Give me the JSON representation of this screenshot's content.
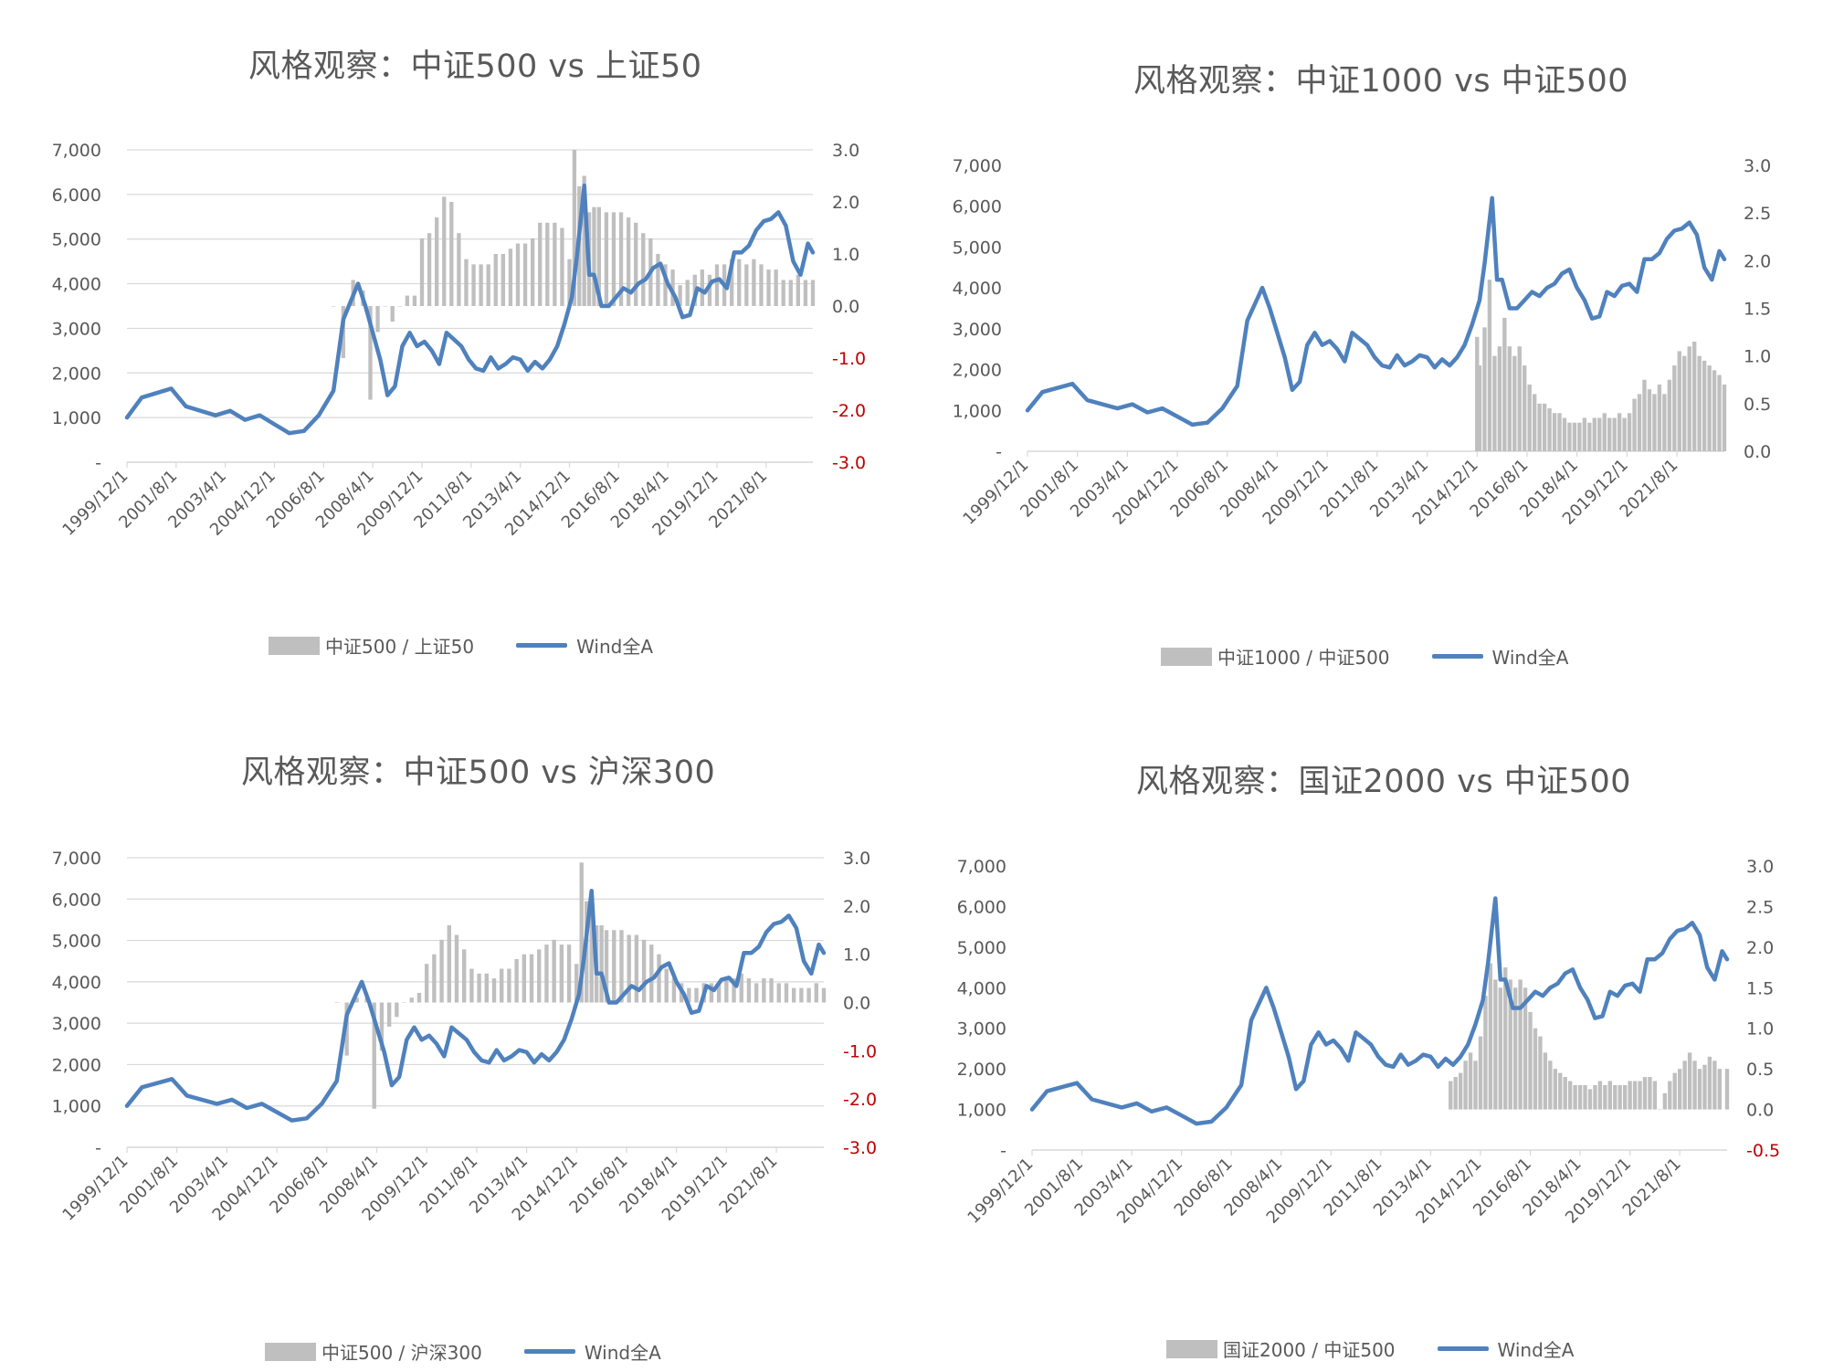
{
  "colors": {
    "bar": "#bfbfbf",
    "line": "#4f81bd",
    "grid": "#d9d9d9",
    "negative_tick": "#c00000",
    "text": "#595959"
  },
  "x_tick_labels": [
    "1999/12/1",
    "2001/8/1",
    "2003/4/1",
    "2004/12/1",
    "2006/8/1",
    "2008/4/1",
    "2009/12/1",
    "2011/8/1",
    "2013/4/1",
    "2014/12/1",
    "2016/8/1",
    "2018/4/1",
    "2019/12/1",
    "2021/8/1"
  ],
  "wind_all_a": {
    "name": "Wind全A",
    "x": [
      "1999/12",
      "2000/6",
      "2000/12",
      "2001/6",
      "2001/12",
      "2002/6",
      "2002/12",
      "2003/6",
      "2003/12",
      "2004/6",
      "2004/12",
      "2005/6",
      "2005/12",
      "2006/6",
      "2006/12",
      "2007/4",
      "2007/7",
      "2007/10",
      "2008/1",
      "2008/4",
      "2008/7",
      "2008/10",
      "2009/1",
      "2009/4",
      "2009/7",
      "2009/10",
      "2010/1",
      "2010/4",
      "2010/7",
      "2010/10",
      "2011/1",
      "2011/4",
      "2011/7",
      "2011/10",
      "2012/1",
      "2012/4",
      "2012/7",
      "2012/10",
      "2013/1",
      "2013/4",
      "2013/7",
      "2013/10",
      "2014/1",
      "2014/4",
      "2014/7",
      "2014/10",
      "2015/1",
      "2015/3",
      "2015/6",
      "2015/8",
      "2015/10",
      "2016/1",
      "2016/4",
      "2016/7",
      "2016/10",
      "2017/1",
      "2017/4",
      "2017/7",
      "2017/10",
      "2018/1",
      "2018/4",
      "2018/7",
      "2018/10",
      "2019/1",
      "2019/4",
      "2019/7",
      "2019/10",
      "2020/1",
      "2020/4",
      "2020/7",
      "2020/10",
      "2021/1",
      "2021/4",
      "2021/7",
      "2021/10",
      "2022/1",
      "2022/4",
      "2022/7",
      "2022/10",
      "2023/1",
      "2023/3"
    ],
    "values": [
      1000,
      1450,
      1550,
      1650,
      1250,
      1150,
      1050,
      1150,
      950,
      1050,
      850,
      650,
      700,
      1050,
      1600,
      3200,
      3600,
      4000,
      3500,
      2900,
      2300,
      1500,
      1700,
      2600,
      2900,
      2600,
      2700,
      2500,
      2200,
      2900,
      2750,
      2600,
      2300,
      2100,
      2050,
      2350,
      2100,
      2200,
      2350,
      2300,
      2050,
      2250,
      2100,
      2300,
      2600,
      3100,
      3700,
      4600,
      6200,
      4200,
      4200,
      3500,
      3500,
      3700,
      3900,
      3800,
      4000,
      4100,
      4350,
      4450,
      4000,
      3700,
      3250,
      3300,
      3900,
      3800,
      4050,
      4100,
      3900,
      4700,
      4700,
      4850,
      5200,
      5400,
      5450,
      5600,
      5300,
      4500,
      4200,
      4900,
      4700
    ]
  },
  "charts": [
    {
      "title": "风格观察：中证500 vs 上证50",
      "legend_bar": "中证500 / 上证50",
      "legend_line": "Wind全A",
      "left_ticks": [
        "7,000",
        "6,000",
        "5,000",
        "4,000",
        "3,000",
        "2,000",
        "1,000",
        "-"
      ],
      "right_ticks": [
        "3.0",
        "2.0",
        "1.0",
        "0.0",
        "-1.0",
        "-2.0",
        "-3.0"
      ]
    },
    {
      "title": "风格观察：中证1000 vs 中证500",
      "legend_bar": "中证1000 / 中证500",
      "legend_line": "Wind全A",
      "left_ticks": [
        "7,000",
        "6,000",
        "5,000",
        "4,000",
        "3,000",
        "2,000",
        "1,000",
        "-"
      ],
      "right_ticks": [
        "3.0",
        "2.5",
        "2.0",
        "1.5",
        "1.0",
        "0.5",
        "0.0"
      ]
    },
    {
      "title": "风格观察：中证500 vs 沪深300",
      "legend_bar": "中证500 / 沪深300",
      "legend_line": "Wind全A",
      "left_ticks": [
        "7,000",
        "6,000",
        "5,000",
        "4,000",
        "3,000",
        "2,000",
        "1,000",
        "-"
      ],
      "right_ticks": [
        "3.0",
        "2.0",
        "1.0",
        "0.0",
        "-1.0",
        "-2.0",
        "-3.0"
      ]
    },
    {
      "title": "风格观察：国证2000 vs 中证500",
      "legend_bar": "国证2000 / 中证500",
      "legend_line": "Wind全A",
      "left_ticks": [
        "7,000",
        "6,000",
        "5,000",
        "4,000",
        "3,000",
        "2,000",
        "1,000",
        "-"
      ],
      "right_ticks": [
        "3.0",
        "2.5",
        "2.0",
        "1.5",
        "1.0",
        "0.5",
        "0.0",
        "-0.5"
      ]
    }
  ],
  "chart_data": [
    {
      "type": "bar+line",
      "title": "风格观察：中证500 vs 上证50",
      "left_axis_range": [
        0,
        7000
      ],
      "right_axis_range": [
        -3.0,
        3.0
      ],
      "grid": true,
      "legend_placement": "bottom",
      "series": [
        {
          "name": "中证500 / 上证50",
          "type": "area-bar",
          "axis": "right",
          "x": [
            "2006/12",
            "2007/4",
            "2007/8",
            "2007/12",
            "2008/3",
            "2008/6",
            "2008/9",
            "2008/12",
            "2009/3",
            "2009/6",
            "2009/9",
            "2009/12",
            "2010/3",
            "2010/6",
            "2010/9",
            "2010/12",
            "2011/3",
            "2011/6",
            "2011/9",
            "2011/12",
            "2012/3",
            "2012/6",
            "2012/9",
            "2012/12",
            "2013/3",
            "2013/6",
            "2013/9",
            "2013/12",
            "2014/3",
            "2014/6",
            "2014/9",
            "2014/12",
            "2015/2",
            "2015/4",
            "2015/6",
            "2015/8",
            "2015/10",
            "2015/12",
            "2016/3",
            "2016/6",
            "2016/9",
            "2016/12",
            "2017/3",
            "2017/6",
            "2017/9",
            "2017/12",
            "2018/3",
            "2018/6",
            "2018/9",
            "2018/12",
            "2019/3",
            "2019/6",
            "2019/9",
            "2019/12",
            "2020/3",
            "2020/6",
            "2020/9",
            "2020/12",
            "2021/3",
            "2021/6",
            "2021/9",
            "2021/12",
            "2022/3",
            "2022/6",
            "2022/9",
            "2022/12",
            "2023/3"
          ],
          "values": [
            0.0,
            -1.0,
            0.5,
            0.3,
            -1.8,
            -0.5,
            0.0,
            -0.3,
            0.0,
            0.2,
            0.2,
            1.3,
            1.4,
            1.7,
            2.1,
            2.0,
            1.4,
            0.9,
            0.8,
            0.8,
            0.8,
            1.0,
            1.0,
            1.1,
            1.2,
            1.2,
            1.3,
            1.6,
            1.6,
            1.6,
            1.5,
            0.9,
            3.0,
            2.3,
            2.5,
            1.8,
            1.9,
            1.9,
            1.8,
            1.8,
            1.8,
            1.7,
            1.6,
            1.4,
            1.3,
            1.0,
            0.8,
            0.7,
            0.4,
            0.5,
            0.6,
            0.7,
            0.6,
            0.8,
            0.8,
            0.9,
            0.9,
            0.8,
            0.9,
            0.8,
            0.7,
            0.7,
            0.5,
            0.5,
            0.6,
            0.5,
            0.5
          ]
        },
        {
          "name": "Wind全A",
          "type": "line",
          "axis": "left",
          "values_ref": "wind_all_a"
        }
      ]
    },
    {
      "type": "bar+line",
      "title": "风格观察：中证1000 vs 中证500",
      "left_axis_range": [
        0,
        7000
      ],
      "right_axis_range": [
        0.0,
        3.0
      ],
      "grid": false,
      "legend_placement": "bottom",
      "series": [
        {
          "name": "中证1000 / 中证500",
          "type": "area-bar",
          "axis": "right",
          "x": [
            "2014/12",
            "2015/1",
            "2015/3",
            "2015/5",
            "2015/7",
            "2015/9",
            "2015/11",
            "2016/1",
            "2016/3",
            "2016/5",
            "2016/7",
            "2016/9",
            "2016/11",
            "2017/1",
            "2017/3",
            "2017/5",
            "2017/7",
            "2017/9",
            "2017/11",
            "2018/1",
            "2018/3",
            "2018/5",
            "2018/7",
            "2018/9",
            "2018/11",
            "2019/1",
            "2019/3",
            "2019/5",
            "2019/7",
            "2019/9",
            "2019/11",
            "2020/1",
            "2020/3",
            "2020/5",
            "2020/7",
            "2020/9",
            "2020/11",
            "2021/1",
            "2021/3",
            "2021/5",
            "2021/7",
            "2021/9",
            "2021/11",
            "2022/1",
            "2022/3",
            "2022/5",
            "2022/7",
            "2022/9",
            "2022/11",
            "2023/1",
            "2023/3"
          ],
          "values": [
            1.2,
            0.9,
            1.3,
            1.8,
            1.0,
            1.1,
            1.4,
            1.1,
            1.0,
            1.1,
            0.9,
            0.7,
            0.6,
            0.5,
            0.5,
            0.45,
            0.4,
            0.4,
            0.35,
            0.3,
            0.3,
            0.3,
            0.35,
            0.3,
            0.35,
            0.35,
            0.4,
            0.35,
            0.35,
            0.4,
            0.35,
            0.4,
            0.55,
            0.6,
            0.75,
            0.65,
            0.6,
            0.7,
            0.6,
            0.75,
            0.9,
            1.05,
            1.0,
            1.1,
            1.15,
            1.0,
            0.95,
            0.9,
            0.85,
            0.8,
            0.7
          ]
        },
        {
          "name": "Wind全A",
          "type": "line",
          "axis": "left",
          "values_ref": "wind_all_a"
        }
      ]
    },
    {
      "type": "bar+line",
      "title": "风格观察：中证500 vs 沪深300",
      "left_axis_range": [
        0,
        7000
      ],
      "right_axis_range": [
        -3.0,
        3.0
      ],
      "grid": true,
      "legend_placement": "bottom",
      "series": [
        {
          "name": "中证500 / 沪深300",
          "type": "area-bar",
          "axis": "right",
          "x": [
            "2006/12",
            "2007/4",
            "2007/8",
            "2007/12",
            "2008/3",
            "2008/6",
            "2008/9",
            "2008/12",
            "2009/3",
            "2009/6",
            "2009/9",
            "2009/12",
            "2010/3",
            "2010/6",
            "2010/9",
            "2010/12",
            "2011/3",
            "2011/6",
            "2011/9",
            "2011/12",
            "2012/3",
            "2012/6",
            "2012/9",
            "2012/12",
            "2013/3",
            "2013/6",
            "2013/9",
            "2013/12",
            "2014/3",
            "2014/6",
            "2014/9",
            "2014/12",
            "2015/2",
            "2015/4",
            "2015/6",
            "2015/8",
            "2015/10",
            "2015/12",
            "2016/3",
            "2016/6",
            "2016/9",
            "2016/12",
            "2017/3",
            "2017/6",
            "2017/9",
            "2017/12",
            "2018/3",
            "2018/6",
            "2018/9",
            "2018/12",
            "2019/3",
            "2019/6",
            "2019/9",
            "2019/12",
            "2020/3",
            "2020/6",
            "2020/9",
            "2020/12",
            "2021/3",
            "2021/6",
            "2021/9",
            "2021/12",
            "2022/3",
            "2022/6",
            "2022/9",
            "2022/12",
            "2023/3"
          ],
          "values": [
            0.0,
            -1.1,
            0.1,
            0.1,
            -2.2,
            -1.0,
            -0.5,
            -0.3,
            0.0,
            0.1,
            0.2,
            0.8,
            1.0,
            1.3,
            1.6,
            1.4,
            1.1,
            0.7,
            0.6,
            0.6,
            0.5,
            0.7,
            0.7,
            0.9,
            1.0,
            1.0,
            1.1,
            1.2,
            1.3,
            1.2,
            1.2,
            0.8,
            2.9,
            2.1,
            2.2,
            1.6,
            1.6,
            1.5,
            1.5,
            1.5,
            1.4,
            1.4,
            1.3,
            1.2,
            1.0,
            0.7,
            0.5,
            0.4,
            0.3,
            0.3,
            0.4,
            0.4,
            0.4,
            0.5,
            0.5,
            0.6,
            0.5,
            0.4,
            0.5,
            0.5,
            0.4,
            0.4,
            0.3,
            0.3,
            0.3,
            0.4,
            0.3
          ]
        },
        {
          "name": "Wind全A",
          "type": "line",
          "axis": "left",
          "values_ref": "wind_all_a"
        }
      ]
    },
    {
      "type": "bar+line",
      "title": "风格观察：国证2000 vs 中证500",
      "left_axis_range": [
        0,
        7000
      ],
      "right_axis_range": [
        -0.5,
        3.0
      ],
      "grid": false,
      "legend_placement": "bottom",
      "series": [
        {
          "name": "国证2000 / 中证500",
          "type": "area-bar",
          "axis": "right",
          "x": [
            "2013/12",
            "2014/2",
            "2014/4",
            "2014/6",
            "2014/8",
            "2014/10",
            "2014/12",
            "2015/2",
            "2015/4",
            "2015/6",
            "2015/8",
            "2015/10",
            "2015/12",
            "2016/2",
            "2016/4",
            "2016/6",
            "2016/8",
            "2016/10",
            "2016/12",
            "2017/2",
            "2017/4",
            "2017/6",
            "2017/8",
            "2017/10",
            "2017/12",
            "2018/2",
            "2018/4",
            "2018/6",
            "2018/8",
            "2018/10",
            "2018/12",
            "2019/2",
            "2019/4",
            "2019/6",
            "2019/8",
            "2019/10",
            "2019/12",
            "2020/2",
            "2020/4",
            "2020/6",
            "2020/8",
            "2020/10",
            "2020/12",
            "2021/2",
            "2021/4",
            "2021/6",
            "2021/8",
            "2021/10",
            "2021/12",
            "2022/2",
            "2022/4",
            "2022/6",
            "2022/8",
            "2022/10",
            "2022/12",
            "2023/3"
          ],
          "values": [
            0.35,
            0.4,
            0.45,
            0.6,
            0.7,
            0.6,
            0.9,
            1.4,
            1.8,
            1.6,
            1.5,
            1.75,
            1.6,
            1.5,
            1.6,
            1.5,
            1.2,
            1.0,
            0.9,
            0.7,
            0.6,
            0.5,
            0.45,
            0.4,
            0.35,
            0.3,
            0.3,
            0.3,
            0.25,
            0.3,
            0.35,
            0.3,
            0.35,
            0.3,
            0.3,
            0.3,
            0.35,
            0.35,
            0.35,
            0.4,
            0.4,
            0.35,
            0.0,
            0.2,
            0.35,
            0.45,
            0.5,
            0.6,
            0.7,
            0.6,
            0.5,
            0.55,
            0.65,
            0.6,
            0.5,
            0.5
          ]
        },
        {
          "name": "Wind全A",
          "type": "line",
          "axis": "left",
          "values_ref": "wind_all_a"
        }
      ]
    }
  ]
}
